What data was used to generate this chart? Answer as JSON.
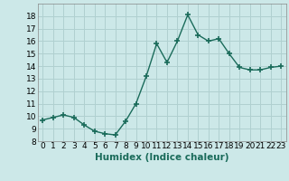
{
  "x": [
    0,
    1,
    2,
    3,
    4,
    5,
    6,
    7,
    8,
    9,
    10,
    11,
    12,
    13,
    14,
    15,
    16,
    17,
    18,
    19,
    20,
    21,
    22,
    23
  ],
  "y": [
    9.7,
    9.9,
    10.1,
    9.9,
    9.3,
    8.8,
    8.6,
    8.5,
    9.6,
    11.0,
    13.2,
    15.8,
    14.3,
    16.0,
    18.1,
    16.5,
    16.0,
    16.2,
    15.0,
    13.9,
    13.7,
    13.7,
    13.9,
    14.0
  ],
  "line_color": "#1a6b5a",
  "marker": "+",
  "marker_size": 4,
  "bg_color": "#cce8e8",
  "grid_color": "#b0d0d0",
  "xlabel": "Humidex (Indice chaleur)",
  "ylim": [
    8,
    19
  ],
  "xlim": [
    -0.5,
    23.5
  ],
  "yticks": [
    8,
    9,
    10,
    11,
    12,
    13,
    14,
    15,
    16,
    17,
    18
  ],
  "xticks": [
    0,
    1,
    2,
    3,
    4,
    5,
    6,
    7,
    8,
    9,
    10,
    11,
    12,
    13,
    14,
    15,
    16,
    17,
    18,
    19,
    20,
    21,
    22,
    23
  ],
  "tick_fontsize": 6.5,
  "xlabel_fontsize": 7.5
}
